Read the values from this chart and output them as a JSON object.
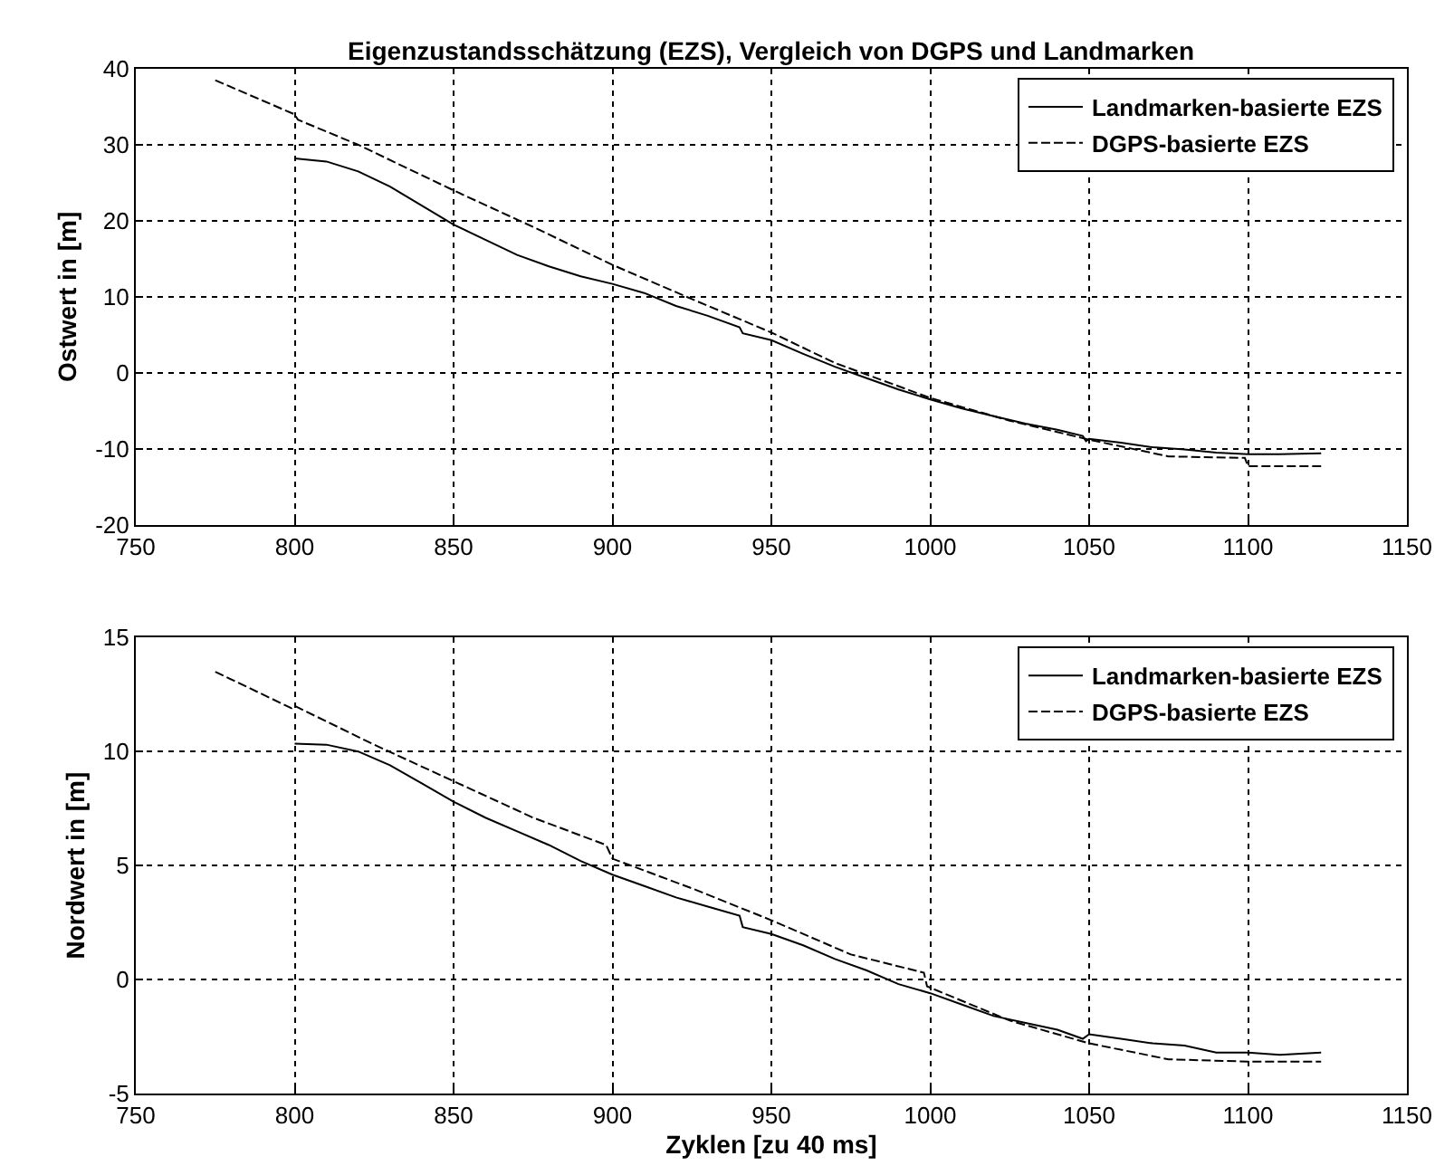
{
  "chart_data": [
    {
      "type": "line",
      "title": "Eigenzustandsschätzung (EZS), Vergleich von DGPS und Landmarken",
      "ylabel": "Ostwert in [m]",
      "xlim": [
        750,
        1150
      ],
      "xticks": [
        750,
        800,
        850,
        900,
        950,
        1000,
        1050,
        1100,
        1150
      ],
      "ylim": [
        -20,
        40
      ],
      "yticks": [
        -20,
        -10,
        0,
        10,
        20,
        30,
        40
      ],
      "grid": true,
      "legend": "top right",
      "marker": "none",
      "series": [
        {
          "name": "Landmarken-basierte EZS",
          "color": "#000000",
          "line_style": "solid",
          "x": [
            800,
            810,
            820,
            830,
            840,
            850,
            860,
            870,
            880,
            890,
            900,
            910,
            920,
            930,
            940,
            941,
            950,
            960,
            970,
            980,
            990,
            1000,
            1010,
            1020,
            1030,
            1040,
            1048,
            1049,
            1050,
            1060,
            1070,
            1080,
            1090,
            1100,
            1110,
            1123
          ],
          "values": [
            28.2,
            27.8,
            26.5,
            24.5,
            22,
            19.5,
            17.5,
            15.5,
            14,
            12.7,
            11.7,
            10.5,
            8.8,
            7.5,
            6.0,
            5.2,
            4.3,
            2.5,
            0.8,
            -0.7,
            -2.2,
            -3.5,
            -4.7,
            -5.7,
            -6.7,
            -7.5,
            -8.3,
            -9.0,
            -8.7,
            -9.2,
            -9.8,
            -10.1,
            -10.5,
            -10.7,
            -10.7,
            -10.6
          ]
        },
        {
          "name": "DGPS-basierte EZS",
          "color": "#000000",
          "line_style": "dashed",
          "x": [
            775,
            800,
            801,
            820,
            850,
            875,
            900,
            925,
            950,
            970,
            1000,
            1025,
            1050,
            1075,
            1099,
            1100,
            1123
          ],
          "values": [
            38.5,
            34,
            33.3,
            30,
            24,
            19.2,
            14.2,
            9.7,
            5.3,
            1.3,
            -3.3,
            -6.3,
            -8.8,
            -11.0,
            -11.2,
            -12.3,
            -12.3
          ]
        }
      ]
    },
    {
      "type": "line",
      "xlabel": "Zyklen [zu 40 ms]",
      "ylabel": "Nordwert in [m]",
      "xlim": [
        750,
        1150
      ],
      "xticks": [
        750,
        800,
        850,
        900,
        950,
        1000,
        1050,
        1100,
        1150
      ],
      "ylim": [
        -5,
        15
      ],
      "yticks": [
        -5,
        0,
        5,
        10,
        15
      ],
      "grid": true,
      "legend": "top right",
      "marker": "none",
      "series": [
        {
          "name": "Landmarken-basierte EZS",
          "color": "#000000",
          "line_style": "solid",
          "x": [
            800,
            810,
            820,
            830,
            840,
            850,
            860,
            870,
            880,
            890,
            900,
            910,
            920,
            930,
            940,
            941,
            950,
            960,
            970,
            980,
            990,
            1000,
            1010,
            1020,
            1030,
            1040,
            1048,
            1050,
            1060,
            1070,
            1080,
            1090,
            1100,
            1110,
            1123
          ],
          "values": [
            10.35,
            10.3,
            10.0,
            9.4,
            8.6,
            7.8,
            7.1,
            6.5,
            5.9,
            5.2,
            4.6,
            4.1,
            3.6,
            3.2,
            2.8,
            2.3,
            2.0,
            1.5,
            0.9,
            0.4,
            -0.2,
            -0.6,
            -1.1,
            -1.6,
            -1.9,
            -2.2,
            -2.6,
            -2.4,
            -2.6,
            -2.8,
            -2.9,
            -3.2,
            -3.2,
            -3.3,
            -3.2
          ]
        },
        {
          "name": "DGPS-basierte EZS",
          "color": "#000000",
          "line_style": "dashed",
          "x": [
            775,
            799,
            800,
            825,
            850,
            875,
            898,
            900,
            925,
            950,
            975,
            998,
            999,
            1025,
            1050,
            1075,
            1100,
            1123
          ],
          "values": [
            13.5,
            11.9,
            12.0,
            10.3,
            8.7,
            7.1,
            5.9,
            5.3,
            4.0,
            2.6,
            1.1,
            0.3,
            -0.3,
            -1.8,
            -2.8,
            -3.5,
            -3.6,
            -3.6
          ]
        }
      ]
    }
  ]
}
